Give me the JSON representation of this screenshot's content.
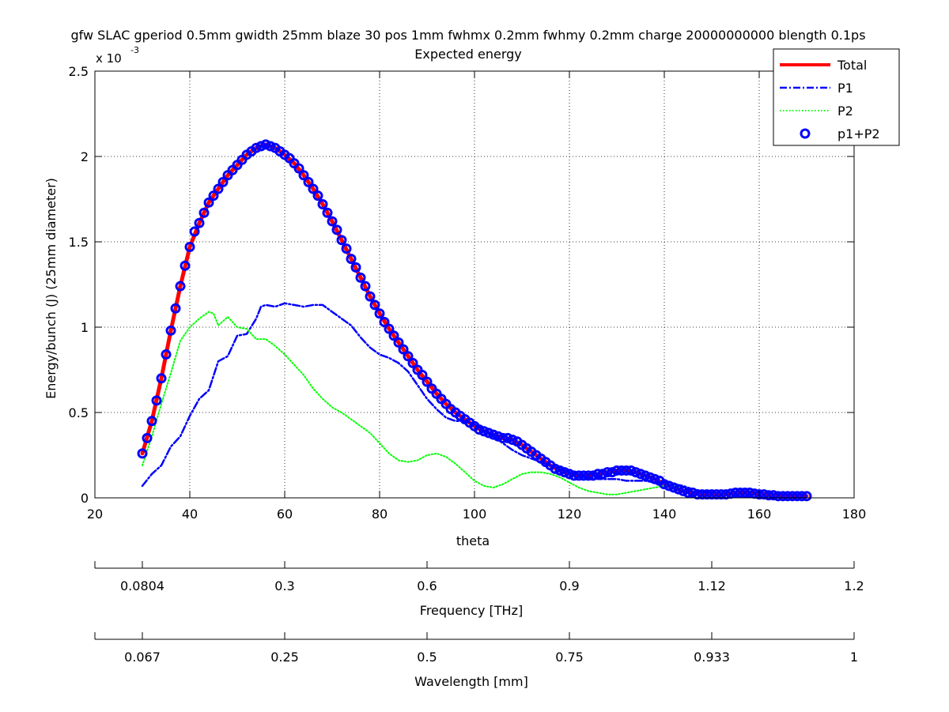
{
  "chart_data": {
    "type": "line",
    "title": "gfw SLAC gperiod 0.5mm gwidth 25mm blaze 30 pos 1mm fwhmx 0.2mm fwhmy 0.2mm charge 20000000000 blength 0.1ps",
    "subtitle": "Expected energy",
    "xlabel": "theta",
    "ylabel": "Energy/bunch (J) (25mm diameter)",
    "y_multiplier_label": "x 10",
    "y_multiplier_exponent": "-3",
    "xlim": [
      20,
      180
    ],
    "ylim": [
      0,
      2.5
    ],
    "x_ticks": [
      "20",
      "40",
      "60",
      "80",
      "100",
      "120",
      "140",
      "160",
      "180"
    ],
    "y_ticks": [
      "0",
      "0.5",
      "1",
      "1.5",
      "2",
      "2.5"
    ],
    "grid": true,
    "legend_position": "top-right",
    "series": [
      {
        "name": "Total",
        "color": "#ff0000",
        "style": "solid",
        "x": [
          30,
          32,
          34,
          36,
          38,
          40,
          42,
          44,
          46,
          48,
          50,
          52,
          54,
          56,
          58,
          60,
          62,
          64,
          66,
          68,
          70,
          72,
          74,
          76,
          78,
          80,
          82,
          84,
          86,
          88,
          90,
          92,
          94,
          96,
          98,
          100,
          102,
          104,
          106,
          108,
          110,
          112,
          114,
          116,
          118,
          120,
          122,
          124,
          126,
          128,
          130,
          132,
          134,
          136,
          138,
          140,
          142,
          144,
          146,
          148,
          150,
          152,
          154,
          156,
          158,
          160,
          162,
          164,
          166,
          168,
          170
        ],
        "y": [
          0.26,
          0.45,
          0.7,
          0.98,
          1.24,
          1.47,
          1.61,
          1.73,
          1.81,
          1.89,
          1.95,
          2.01,
          2.05,
          2.07,
          2.05,
          2.01,
          1.96,
          1.89,
          1.81,
          1.72,
          1.62,
          1.51,
          1.4,
          1.29,
          1.18,
          1.08,
          0.99,
          0.91,
          0.83,
          0.75,
          0.68,
          0.61,
          0.55,
          0.5,
          0.46,
          0.42,
          0.39,
          0.37,
          0.35,
          0.34,
          0.31,
          0.27,
          0.23,
          0.19,
          0.16,
          0.14,
          0.13,
          0.13,
          0.14,
          0.15,
          0.16,
          0.16,
          0.15,
          0.13,
          0.11,
          0.08,
          0.06,
          0.04,
          0.03,
          0.02,
          0.02,
          0.02,
          0.025,
          0.03,
          0.03,
          0.025,
          0.02,
          0.015,
          0.01,
          0.01,
          0.01
        ]
      },
      {
        "name": "P1",
        "color": "#0000ff",
        "style": "dashdot",
        "x": [
          30,
          32,
          34,
          36,
          38,
          40,
          42,
          44,
          46,
          48,
          50,
          52,
          54,
          55,
          56,
          58,
          60,
          62,
          64,
          66,
          68,
          70,
          72,
          74,
          76,
          78,
          80,
          82,
          84,
          86,
          88,
          90,
          92,
          94,
          96,
          98,
          100,
          102,
          104,
          106,
          108,
          110,
          112,
          114,
          116,
          118,
          120,
          122,
          124,
          126,
          128,
          130,
          132,
          134,
          136,
          138,
          140,
          142,
          144,
          146,
          148,
          150
        ],
        "y": [
          0.07,
          0.14,
          0.19,
          0.3,
          0.36,
          0.48,
          0.58,
          0.63,
          0.8,
          0.83,
          0.95,
          0.96,
          1.05,
          1.12,
          1.13,
          1.12,
          1.14,
          1.13,
          1.12,
          1.13,
          1.13,
          1.09,
          1.05,
          1.01,
          0.94,
          0.88,
          0.84,
          0.82,
          0.79,
          0.74,
          0.66,
          0.58,
          0.52,
          0.47,
          0.45,
          0.45,
          0.43,
          0.4,
          0.36,
          0.32,
          0.28,
          0.25,
          0.23,
          0.21,
          0.19,
          0.17,
          0.15,
          0.13,
          0.12,
          0.11,
          0.11,
          0.11,
          0.1,
          0.1,
          0.1,
          0.09,
          0.09,
          0.08,
          0.07,
          0.05,
          0.04,
          0.03
        ]
      },
      {
        "name": "P2",
        "color": "#00ff00",
        "style": "dotted",
        "x": [
          30,
          32,
          34,
          36,
          38,
          40,
          42,
          44,
          45,
          46,
          48,
          50,
          52,
          54,
          56,
          58,
          60,
          62,
          64,
          66,
          68,
          70,
          72,
          74,
          76,
          78,
          80,
          82,
          84,
          86,
          88,
          90,
          92,
          94,
          96,
          98,
          100,
          102,
          104,
          106,
          108,
          110,
          112,
          114,
          116,
          118,
          120,
          122,
          124,
          126,
          128,
          130,
          132,
          134,
          136,
          138,
          140,
          142,
          144,
          146,
          148
        ],
        "y": [
          0.19,
          0.36,
          0.55,
          0.73,
          0.92,
          1.0,
          1.05,
          1.09,
          1.08,
          1.01,
          1.06,
          1.0,
          0.99,
          0.93,
          0.93,
          0.89,
          0.84,
          0.78,
          0.72,
          0.64,
          0.58,
          0.53,
          0.5,
          0.46,
          0.42,
          0.38,
          0.32,
          0.26,
          0.22,
          0.21,
          0.22,
          0.25,
          0.26,
          0.24,
          0.2,
          0.15,
          0.1,
          0.07,
          0.06,
          0.08,
          0.11,
          0.14,
          0.15,
          0.15,
          0.14,
          0.12,
          0.09,
          0.06,
          0.04,
          0.03,
          0.02,
          0.02,
          0.03,
          0.04,
          0.05,
          0.06,
          0.07,
          0.07,
          0.06,
          0.05,
          0.03
        ]
      },
      {
        "name": "p1+P2",
        "color": "#0000ff",
        "style": "circle-markers",
        "x": [
          30,
          31,
          32,
          33,
          34,
          35,
          36,
          37,
          38,
          39,
          40,
          41,
          42,
          43,
          44,
          45,
          46,
          47,
          48,
          49,
          50,
          51,
          52,
          53,
          54,
          55,
          56,
          57,
          58,
          59,
          60,
          61,
          62,
          63,
          64,
          65,
          66,
          67,
          68,
          69,
          70,
          71,
          72,
          73,
          74,
          75,
          76,
          77,
          78,
          79,
          80,
          81,
          82,
          83,
          84,
          85,
          86,
          87,
          88,
          89,
          90,
          91,
          92,
          93,
          94,
          95,
          96,
          97,
          98,
          99,
          100,
          101,
          102,
          103,
          104,
          105,
          106,
          107,
          108,
          109,
          110,
          111,
          112,
          113,
          114,
          115,
          116,
          117,
          118,
          119,
          120,
          121,
          122,
          123,
          124,
          125,
          126,
          127,
          128,
          129,
          130,
          131,
          132,
          133,
          134,
          135,
          136,
          137,
          138,
          139,
          140,
          141,
          142,
          143,
          144,
          145,
          146,
          147,
          148,
          149,
          150,
          151,
          152,
          153,
          154,
          155,
          156,
          157,
          158,
          159,
          160,
          161,
          162,
          163,
          164,
          165,
          166,
          167,
          168,
          169,
          170
        ],
        "y": [
          0.26,
          0.35,
          0.45,
          0.57,
          0.7,
          0.84,
          0.98,
          1.11,
          1.24,
          1.36,
          1.47,
          1.56,
          1.61,
          1.67,
          1.73,
          1.77,
          1.81,
          1.85,
          1.89,
          1.92,
          1.95,
          1.98,
          2.01,
          2.03,
          2.05,
          2.06,
          2.07,
          2.06,
          2.05,
          2.03,
          2.01,
          1.99,
          1.96,
          1.93,
          1.89,
          1.85,
          1.81,
          1.77,
          1.72,
          1.67,
          1.62,
          1.57,
          1.51,
          1.46,
          1.4,
          1.35,
          1.29,
          1.24,
          1.18,
          1.13,
          1.08,
          1.03,
          0.99,
          0.95,
          0.91,
          0.87,
          0.83,
          0.79,
          0.75,
          0.72,
          0.68,
          0.64,
          0.61,
          0.58,
          0.55,
          0.52,
          0.5,
          0.48,
          0.46,
          0.44,
          0.42,
          0.4,
          0.39,
          0.38,
          0.37,
          0.36,
          0.35,
          0.35,
          0.34,
          0.33,
          0.31,
          0.29,
          0.27,
          0.25,
          0.23,
          0.21,
          0.19,
          0.17,
          0.16,
          0.15,
          0.14,
          0.13,
          0.13,
          0.13,
          0.13,
          0.13,
          0.14,
          0.14,
          0.15,
          0.15,
          0.16,
          0.16,
          0.16,
          0.16,
          0.15,
          0.14,
          0.13,
          0.12,
          0.11,
          0.1,
          0.08,
          0.07,
          0.06,
          0.05,
          0.04,
          0.03,
          0.03,
          0.02,
          0.02,
          0.02,
          0.02,
          0.02,
          0.02,
          0.02,
          0.025,
          0.03,
          0.03,
          0.03,
          0.03,
          0.025,
          0.02,
          0.02,
          0.015,
          0.015,
          0.01,
          0.01,
          0.01,
          0.01,
          0.01,
          0.01,
          0.01
        ]
      }
    ],
    "frequency_axis": {
      "label": "Frequency [THz]",
      "ticks": [
        {
          "theta": 30,
          "label": "0.0804"
        },
        {
          "theta": 60,
          "label": "0.3"
        },
        {
          "theta": 90,
          "label": "0.6"
        },
        {
          "theta": 120,
          "label": "0.9"
        },
        {
          "theta": 150,
          "label": "1.12"
        },
        {
          "theta": 180,
          "label": "1.2"
        }
      ]
    },
    "wavelength_axis": {
      "label": "Wavelength [mm]",
      "ticks": [
        {
          "theta": 30,
          "label": "0.067"
        },
        {
          "theta": 60,
          "label": "0.25"
        },
        {
          "theta": 90,
          "label": "0.5"
        },
        {
          "theta": 120,
          "label": "0.75"
        },
        {
          "theta": 150,
          "label": "0.933"
        },
        {
          "theta": 180,
          "label": "1"
        }
      ]
    }
  }
}
